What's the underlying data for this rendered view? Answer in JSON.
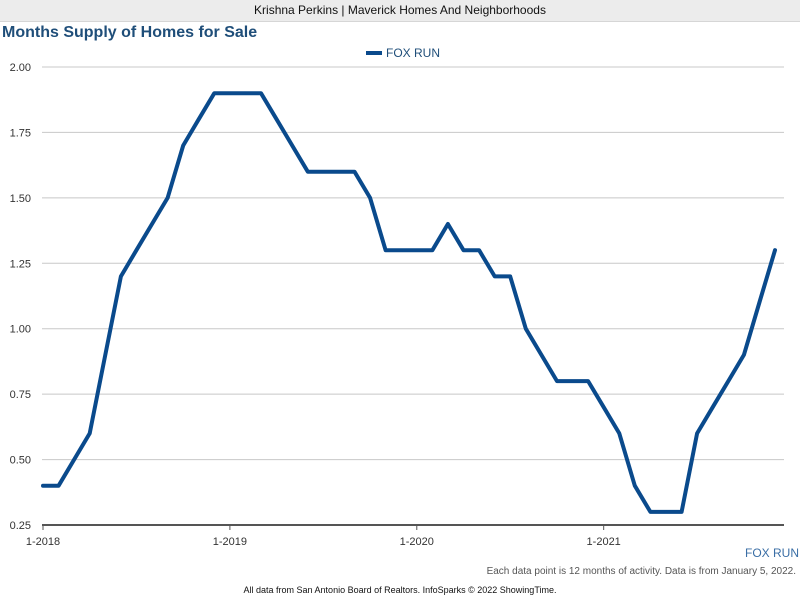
{
  "header": {
    "agent_text": "Krishna Perkins | Maverick Homes And Neighborhoods"
  },
  "colors": {
    "series": "#0a4a8c",
    "title": "#1f4e79",
    "grid": "#c8c8c8",
    "axis": "#555555"
  },
  "chart_data": {
    "type": "line",
    "title": "Months Supply of Homes for Sale",
    "xlabel": "",
    "ylabel": "",
    "ylim": [
      0.25,
      2.0
    ],
    "yticks": [
      "2.00",
      "1.75",
      "1.50",
      "1.25",
      "1.00",
      "0.75",
      "0.50",
      "0.25"
    ],
    "ytick_values": [
      2.0,
      1.75,
      1.5,
      1.25,
      1.0,
      0.75,
      0.5,
      0.25
    ],
    "xticks": [
      "1-2018",
      "1-2019",
      "1-2020",
      "1-2021"
    ],
    "xtick_index": [
      0,
      12,
      24,
      36
    ],
    "grid": true,
    "legend_position": "top-center",
    "series": [
      {
        "name": "FOX RUN",
        "x": [
          "1-2018",
          "2-2018",
          "3-2018",
          "4-2018",
          "5-2018",
          "6-2018",
          "7-2018",
          "8-2018",
          "9-2018",
          "10-2018",
          "11-2018",
          "12-2018",
          "1-2019",
          "2-2019",
          "3-2019",
          "4-2019",
          "5-2019",
          "6-2019",
          "7-2019",
          "8-2019",
          "9-2019",
          "10-2019",
          "11-2019",
          "12-2019",
          "1-2020",
          "2-2020",
          "3-2020",
          "4-2020",
          "5-2020",
          "6-2020",
          "7-2020",
          "8-2020",
          "9-2020",
          "10-2020",
          "11-2020",
          "12-2020",
          "1-2021",
          "2-2021",
          "3-2021",
          "4-2021",
          "5-2021",
          "6-2021",
          "7-2021",
          "8-2021",
          "9-2021",
          "10-2021",
          "11-2021",
          "12-2021"
        ],
        "values": [
          0.4,
          0.4,
          0.5,
          0.6,
          0.9,
          1.2,
          1.3,
          1.4,
          1.5,
          1.7,
          1.8,
          1.9,
          1.9,
          1.9,
          1.9,
          1.8,
          1.7,
          1.6,
          1.6,
          1.6,
          1.6,
          1.5,
          1.3,
          1.3,
          1.3,
          1.3,
          1.4,
          1.3,
          1.3,
          1.2,
          1.2,
          1.0,
          0.9,
          0.8,
          0.8,
          0.8,
          0.7,
          0.6,
          0.4,
          0.3,
          0.3,
          0.3,
          0.6,
          0.7,
          0.8,
          0.9,
          1.1,
          1.3
        ]
      }
    ]
  },
  "series_label": "FOX RUN",
  "note": "Each data point is 12 months of activity. Data is from January 5, 2022.",
  "footer": "All data from San Antonio Board of Realtors. InfoSparks © 2022 ShowingTime."
}
